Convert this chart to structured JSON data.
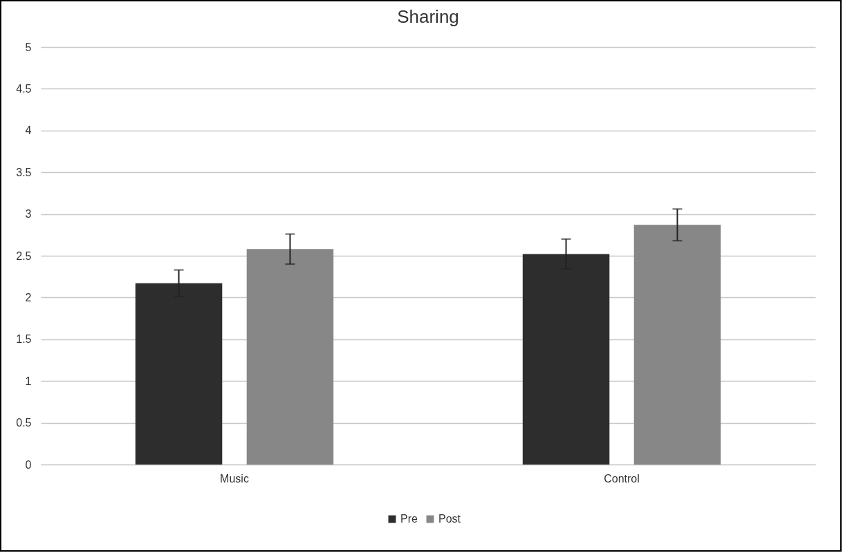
{
  "chart_data": {
    "type": "bar",
    "title": "Sharing",
    "categories": [
      "Music",
      "Control"
    ],
    "series": [
      {
        "name": "Pre",
        "color": "#2d2d2d",
        "values": [
          2.17,
          2.52
        ],
        "errors": [
          0.16,
          0.18
        ]
      },
      {
        "name": "Post",
        "color": "#878787",
        "values": [
          2.58,
          2.87
        ],
        "errors": [
          0.18,
          0.19
        ]
      }
    ],
    "ylim": [
      0,
      5
    ],
    "yticks": [
      0,
      0.5,
      1,
      1.5,
      2,
      2.5,
      3,
      3.5,
      4,
      4.5,
      5
    ],
    "grid": "y",
    "legend": "bottom"
  }
}
